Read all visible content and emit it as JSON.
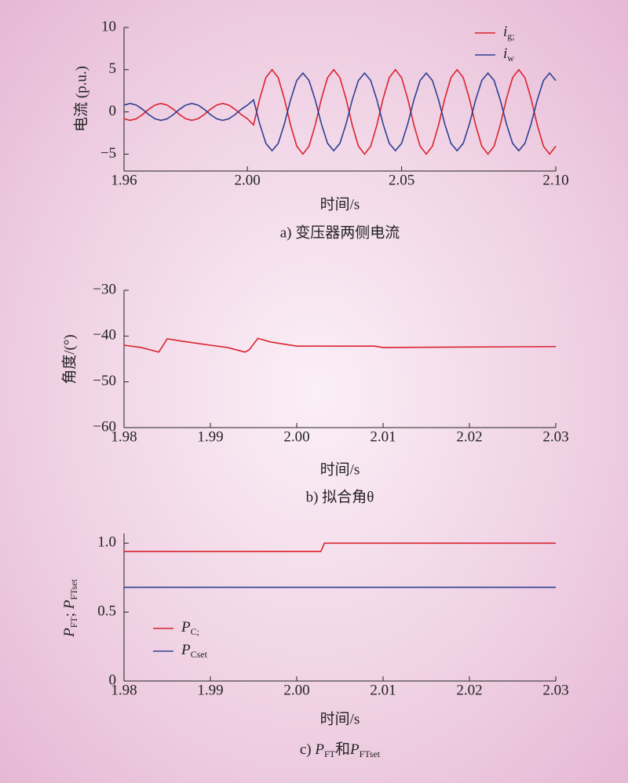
{
  "chart_data": [
    {
      "type": "line",
      "xlabel": "时间/s",
      "ylabel": "电流 (p.u.)",
      "caption": "a) 变压器两侧电流",
      "xlim": [
        1.96,
        2.1
      ],
      "xticks": [
        1.96,
        {
          "value": 2,
          "label": "2.00"
        },
        2.05,
        {
          "value": 2.1,
          "label": "2.10"
        }
      ],
      "ylim": [
        -7,
        10
      ],
      "yticks": [
        {
          "value": -5,
          "label": "−5"
        },
        0,
        5,
        10
      ],
      "x": [
        1.96,
        1.962,
        1.964,
        1.966,
        1.968,
        1.97,
        1.972,
        1.974,
        1.976,
        1.978,
        1.98,
        1.982,
        1.984,
        1.986,
        1.988,
        1.99,
        1.992,
        1.994,
        1.996,
        1.998,
        2.0,
        2.002,
        2.004,
        2.006,
        2.008,
        2.01,
        2.012,
        2.014,
        2.016,
        2.018,
        2.02,
        2.022,
        2.024,
        2.026,
        2.028,
        2.03,
        2.032,
        2.034,
        2.036,
        2.038,
        2.04,
        2.042,
        2.044,
        2.046,
        2.048,
        2.05,
        2.052,
        2.054,
        2.056,
        2.058,
        2.06,
        2.062,
        2.064,
        2.066,
        2.068,
        2.07,
        2.072,
        2.074,
        2.076,
        2.078,
        2.08,
        2.082,
        2.084,
        2.086,
        2.088,
        2.09,
        2.092,
        2.094,
        2.096,
        2.098,
        2.1
      ],
      "series": [
        {
          "name": "i",
          "name_sub": "g;",
          "color": "#d9232e",
          "values": [
            -0.81,
            -1,
            -0.81,
            -0.31,
            0.31,
            0.81,
            1,
            0.81,
            0.31,
            -0.31,
            -0.81,
            -1,
            -0.81,
            -0.31,
            0.31,
            0.81,
            1,
            0.81,
            0.31,
            -0.31,
            -0.81,
            -1.55,
            1.55,
            4.05,
            5,
            4.05,
            1.55,
            -1.55,
            -4.05,
            -5,
            -4.05,
            -1.55,
            1.55,
            4.05,
            5,
            4.05,
            1.55,
            -1.55,
            -4.05,
            -5,
            -4.05,
            -1.55,
            1.55,
            4.05,
            5,
            4.05,
            1.55,
            -1.55,
            -4.05,
            -5,
            -4.05,
            -1.55,
            1.55,
            4.05,
            5,
            4.05,
            1.55,
            -1.55,
            -4.05,
            -5,
            -4.05,
            -1.55,
            1.55,
            4.05,
            5,
            4.05,
            1.55,
            -1.55,
            -4.05,
            -5,
            -4.05
          ]
        },
        {
          "name": "i",
          "name_sub": "w",
          "color": "#2e3f93",
          "values": [
            0.81,
            1,
            0.81,
            0.31,
            -0.31,
            -0.81,
            -1,
            -0.81,
            -0.31,
            0.31,
            0.81,
            1,
            0.81,
            0.31,
            -0.31,
            -0.81,
            -1,
            -0.81,
            -0.31,
            0.31,
            0.81,
            1.42,
            -1.42,
            -3.72,
            -4.6,
            -3.72,
            -1.42,
            1.42,
            3.72,
            4.6,
            3.72,
            1.42,
            -1.42,
            -3.72,
            -4.6,
            -3.72,
            -1.42,
            1.42,
            3.72,
            4.6,
            3.72,
            1.42,
            -1.42,
            -3.72,
            -4.6,
            -3.72,
            -1.42,
            1.42,
            3.72,
            4.6,
            3.72,
            1.42,
            -1.42,
            -3.72,
            -4.6,
            -3.72,
            -1.42,
            1.42,
            3.72,
            4.6,
            3.72,
            1.42,
            -1.42,
            -3.72,
            -4.6,
            -3.72,
            -1.42,
            1.42,
            3.72,
            4.6,
            3.72
          ]
        }
      ]
    },
    {
      "type": "line",
      "xlabel": "时间/s",
      "ylabel": "角度/(°)",
      "caption": "b) 拟合角θ",
      "xlim": [
        1.98,
        2.03
      ],
      "xticks": [
        1.98,
        1.99,
        {
          "value": 2,
          "label": "2.00"
        },
        2.01,
        2.02,
        2.03
      ],
      "ylim": [
        -60,
        -30
      ],
      "yticks": [
        {
          "value": -60,
          "label": "−60"
        },
        {
          "value": -50,
          "label": "−50"
        },
        {
          "value": -40,
          "label": "−40"
        },
        {
          "value": -30,
          "label": "−30"
        }
      ],
      "x": [
        1.98,
        1.982,
        1.984,
        1.9842,
        1.985,
        1.987,
        1.99,
        1.992,
        1.994,
        1.9945,
        1.9955,
        1.997,
        2.0,
        2.009,
        2.01,
        2.02,
        2.03
      ],
      "series": [
        {
          "color": "#d9232e",
          "values": [
            -42,
            -42.5,
            -43.5,
            -43,
            -40.6,
            -41.2,
            -42,
            -42.5,
            -43.5,
            -43,
            -40.5,
            -41.3,
            -42.2,
            -42.2,
            -42.5,
            -42.4,
            -42.3
          ]
        }
      ]
    },
    {
      "type": "line",
      "xlabel": "时间/s",
      "ylabel": [
        "P",
        "FT",
        "; ",
        "P",
        "FTset"
      ],
      "caption": [
        "c) ",
        "P",
        "FT",
        "和",
        "P",
        "FTset"
      ],
      "xlim": [
        1.98,
        2.03
      ],
      "xticks": [
        1.98,
        1.99,
        {
          "value": 2,
          "label": "2.00"
        },
        2.01,
        2.02,
        2.03
      ],
      "ylim": [
        0,
        1.07
      ],
      "yticks": [
        0,
        0.5,
        {
          "value": 1,
          "label": "1.0"
        }
      ],
      "x": [
        1.98,
        2.0028,
        2.0032,
        2.03
      ],
      "series": [
        {
          "name": "P",
          "name_sub": "C;",
          "color": "#d9232e",
          "values": [
            0.94,
            0.94,
            1.0,
            1.0
          ]
        },
        {
          "name": "P",
          "name_sub": "Cset",
          "color": "#2e3f93",
          "values": [
            0.68,
            0.68,
            0.68,
            0.68
          ]
        }
      ]
    }
  ]
}
